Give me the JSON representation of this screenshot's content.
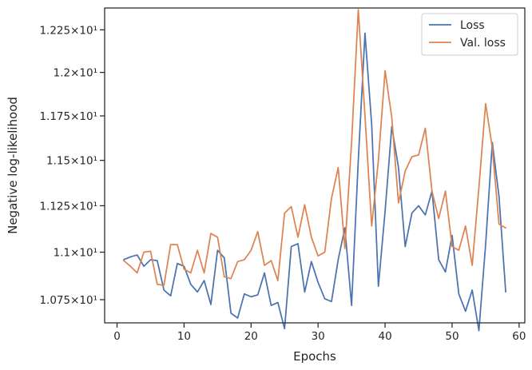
{
  "chart_data": {
    "type": "line",
    "title": "",
    "xlabel": "Epochs",
    "ylabel": "Negative log-likelihood",
    "xlim": [
      -1.85,
      60.85
    ],
    "ylim": [
      10.63,
      12.38
    ],
    "yscale": "log",
    "grid": false,
    "legend_position": "top-right",
    "xticks": [
      0,
      10,
      20,
      30,
      40,
      50,
      60
    ],
    "xtick_labels": [
      "0",
      "10",
      "20",
      "30",
      "40",
      "50",
      "60"
    ],
    "yticks": [
      10.75,
      11.0,
      11.25,
      11.5,
      11.75,
      12.0,
      12.25
    ],
    "ytick_labels": [
      "1.075×10¹",
      "1.1×10¹",
      "1.125×10¹",
      "1.15×10¹",
      "1.175×10¹",
      "1.2×10¹",
      "1.225×10¹"
    ],
    "x": [
      1,
      2,
      3,
      4,
      5,
      6,
      7,
      8,
      9,
      10,
      11,
      12,
      13,
      14,
      15,
      16,
      17,
      18,
      19,
      20,
      21,
      22,
      23,
      24,
      25,
      26,
      27,
      28,
      29,
      30,
      31,
      32,
      33,
      34,
      35,
      36,
      37,
      38,
      39,
      40,
      41,
      42,
      43,
      44,
      45,
      46,
      47,
      48,
      49,
      50,
      51,
      52,
      53,
      54,
      55,
      56,
      57,
      58
    ],
    "series": [
      {
        "name": "Loss",
        "color": "#4c72b0",
        "values": [
          10.96,
          10.975,
          10.985,
          10.925,
          10.96,
          10.955,
          10.8,
          10.77,
          10.94,
          10.925,
          10.83,
          10.79,
          10.85,
          10.725,
          11.01,
          10.97,
          10.68,
          10.655,
          10.78,
          10.765,
          10.775,
          10.89,
          10.72,
          10.735,
          10.6,
          11.03,
          11.045,
          10.79,
          10.95,
          10.84,
          10.755,
          10.74,
          10.96,
          11.13,
          10.72,
          11.5,
          12.23,
          11.7,
          10.82,
          11.22,
          11.69,
          11.46,
          11.03,
          11.21,
          11.25,
          11.2,
          11.33,
          10.96,
          10.895,
          11.09,
          10.78,
          10.69,
          10.8,
          10.59,
          11.04,
          11.6,
          11.3,
          10.79
        ]
      },
      {
        "name": "Val. loss",
        "color": "#dd8452",
        "values": [
          10.955,
          10.925,
          10.89,
          11.0,
          11.005,
          10.83,
          10.825,
          11.04,
          11.04,
          10.91,
          10.89,
          11.01,
          10.89,
          11.1,
          11.08,
          10.87,
          10.86,
          10.95,
          10.96,
          11.01,
          11.11,
          10.93,
          10.955,
          10.85,
          11.21,
          11.245,
          11.08,
          11.255,
          11.08,
          10.98,
          11.0,
          11.29,
          11.46,
          11.02,
          11.6,
          12.37,
          11.75,
          11.14,
          11.5,
          12.01,
          11.74,
          11.265,
          11.44,
          11.52,
          11.53,
          11.68,
          11.33,
          11.18,
          11.33,
          11.03,
          11.01,
          11.14,
          10.93,
          11.35,
          11.82,
          11.57,
          11.15,
          11.13
        ]
      }
    ]
  }
}
